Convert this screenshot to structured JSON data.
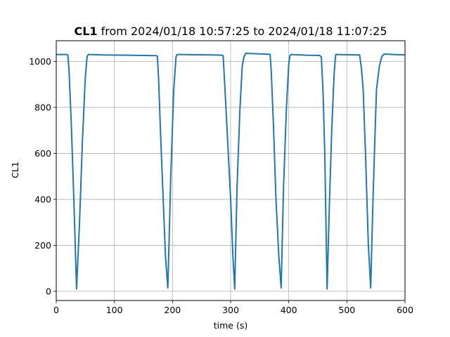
{
  "chart_data": {
    "type": "line",
    "title_bold": "CL1",
    "title_rest": " from 2024/01/18 10:57:25 to 2024/01/18 11:07:25",
    "xlabel": "time (s)",
    "ylabel": "CL1",
    "xlim": [
      0,
      600
    ],
    "ylim": [
      -40,
      1090
    ],
    "xticks": [
      0,
      100,
      200,
      300,
      400,
      500,
      600
    ],
    "yticks": [
      0,
      200,
      400,
      600,
      800,
      1000
    ],
    "grid": true,
    "series": [
      {
        "color": "#1f77b4",
        "x": [
          0,
          18,
          20,
          22,
          26,
          30,
          35,
          40,
          45,
          50,
          53,
          55,
          80,
          120,
          150,
          172,
          174,
          176,
          180,
          184,
          188,
          192,
          197,
          202,
          206,
          208,
          210,
          240,
          270,
          285,
          287,
          289,
          294,
          300,
          304,
          307,
          311,
          316,
          320,
          323,
          325,
          326,
          350,
          366,
          368,
          370,
          374,
          378,
          383,
          387,
          391,
          396,
          400,
          402,
          404,
          430,
          453,
          456,
          459,
          462,
          466,
          470,
          474,
          478,
          480,
          481,
          483,
          500,
          522,
          525,
          528,
          532,
          537,
          541,
          545,
          548,
          551,
          556,
          560,
          563,
          566,
          580,
          600
        ],
        "y": [
          1030,
          1030,
          1028,
          960,
          720,
          420,
          10,
          300,
          650,
          930,
          1020,
          1030,
          1028,
          1027,
          1026,
          1025,
          1023,
          930,
          650,
          400,
          150,
          15,
          500,
          870,
          1020,
          1030,
          1030,
          1029,
          1028,
          1027,
          1025,
          940,
          700,
          400,
          150,
          10,
          450,
          790,
          980,
          1020,
          1030,
          1035,
          1033,
          1031,
          1030,
          950,
          700,
          400,
          150,
          15,
          450,
          800,
          990,
          1025,
          1030,
          1027,
          1026,
          1020,
          870,
          600,
          10,
          380,
          700,
          940,
          1010,
          1030,
          1030,
          1029,
          1028,
          970,
          880,
          600,
          200,
          15,
          400,
          650,
          880,
          980,
          1020,
          1030,
          1032,
          1030,
          1028
        ]
      }
    ]
  }
}
